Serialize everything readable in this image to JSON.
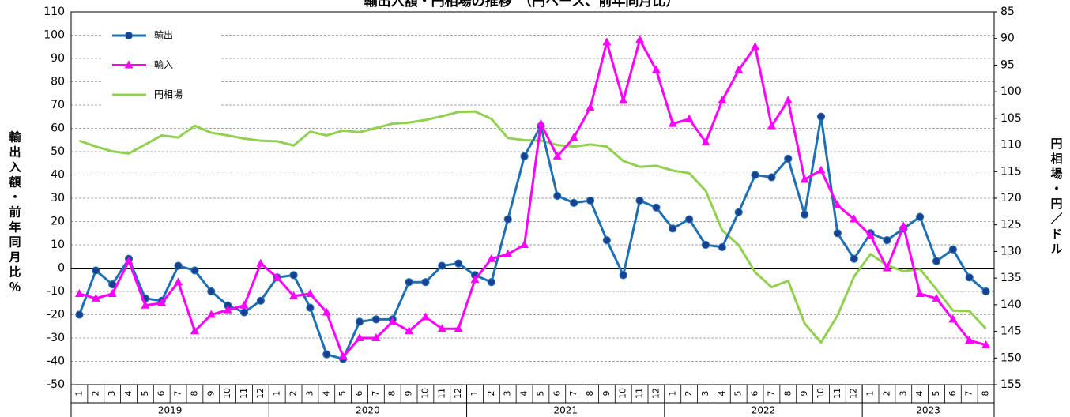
{
  "chart_data": {
    "type": "line",
    "title": "輸出入額・円相場の推移　（円ベース、前年同月比）",
    "y_label": "輸出入額・前年同月比％",
    "y2_label": "円相場・円／ドル",
    "categories": [
      "1",
      "2",
      "3",
      "4",
      "5",
      "6",
      "7",
      "8",
      "9",
      "10",
      "11",
      "12",
      "1",
      "2",
      "3",
      "4",
      "5",
      "6",
      "7",
      "8",
      "9",
      "10",
      "11",
      "12",
      "1",
      "2",
      "3",
      "4",
      "5",
      "6",
      "7",
      "8",
      "9",
      "10",
      "11",
      "12",
      "1",
      "2",
      "3",
      "4",
      "5",
      "6",
      "7",
      "8",
      "9",
      "10",
      "11",
      "12",
      "1",
      "2",
      "3",
      "4",
      "5",
      "6",
      "7",
      "8"
    ],
    "years": [
      "2019",
      "2020",
      "2021",
      "2022",
      "2023"
    ],
    "series": [
      {
        "name": "輸出",
        "color": "#1f6fb5",
        "marker": "circle",
        "values": [
          -20,
          -1,
          -7,
          4,
          -13,
          -14,
          1,
          -1,
          -10,
          -16,
          -19,
          -14,
          -4,
          -3,
          -17,
          -37,
          -39,
          -23,
          -22,
          -22,
          -6,
          -6,
          1,
          2,
          -3,
          -6,
          21,
          48,
          61,
          31,
          28,
          29,
          12,
          -3,
          29,
          26,
          17,
          21,
          10,
          9,
          24,
          40,
          39,
          47,
          23,
          65,
          15,
          4,
          15,
          12,
          17,
          22,
          3,
          8,
          -4,
          -10
        ]
      },
      {
        "name": "輸入",
        "color": "#ff00ff",
        "marker": "triangle",
        "values": [
          -11,
          -13,
          -11,
          3,
          -16,
          -15,
          -6,
          -27,
          -20,
          -18,
          -16,
          2,
          -4,
          -12,
          -11,
          -19,
          -38,
          -30,
          -30,
          -23,
          -27,
          -21,
          -26,
          -26,
          -5,
          4,
          6,
          10,
          62,
          48,
          56,
          69,
          97,
          72,
          98,
          85,
          62,
          64,
          54,
          72,
          85,
          95,
          61,
          72,
          38,
          42,
          27,
          21,
          14,
          0,
          18,
          -11,
          -13,
          -22,
          -31,
          -33
        ]
      },
      {
        "name": "円相場",
        "color": "#92d050",
        "axis": "y2",
        "values": [
          109.2,
          110.3,
          111.2,
          111.6,
          109.9,
          108.2,
          108.6,
          106.4,
          107.7,
          108.2,
          108.8,
          109.2,
          109.3,
          110.1,
          107.5,
          108.2,
          107.3,
          107.6,
          106.8,
          106.0,
          105.8,
          105.3,
          104.6,
          103.8,
          103.7,
          105.1,
          108.7,
          109.1,
          109.2,
          110.0,
          110.3,
          109.9,
          110.3,
          113.0,
          114.1,
          113.9,
          114.8,
          115.3,
          118.6,
          126.0,
          128.8,
          133.9,
          136.7,
          135.5,
          143.5,
          147.1,
          142.0,
          134.7,
          130.5,
          132.6,
          133.7,
          133.3,
          137.1,
          141.1,
          141.2,
          144.5
        ]
      }
    ],
    "ylim": [
      -50,
      110
    ],
    "yticks": [
      -50,
      -40,
      -30,
      -20,
      -10,
      0,
      10,
      20,
      30,
      40,
      50,
      60,
      70,
      80,
      90,
      100,
      110
    ],
    "y2lim": [
      155,
      85
    ],
    "y2ticks": [
      85,
      90,
      95,
      100,
      105,
      110,
      115,
      120,
      125,
      130,
      135,
      140,
      145,
      150,
      155
    ],
    "grid": true,
    "legend": "upper left"
  }
}
